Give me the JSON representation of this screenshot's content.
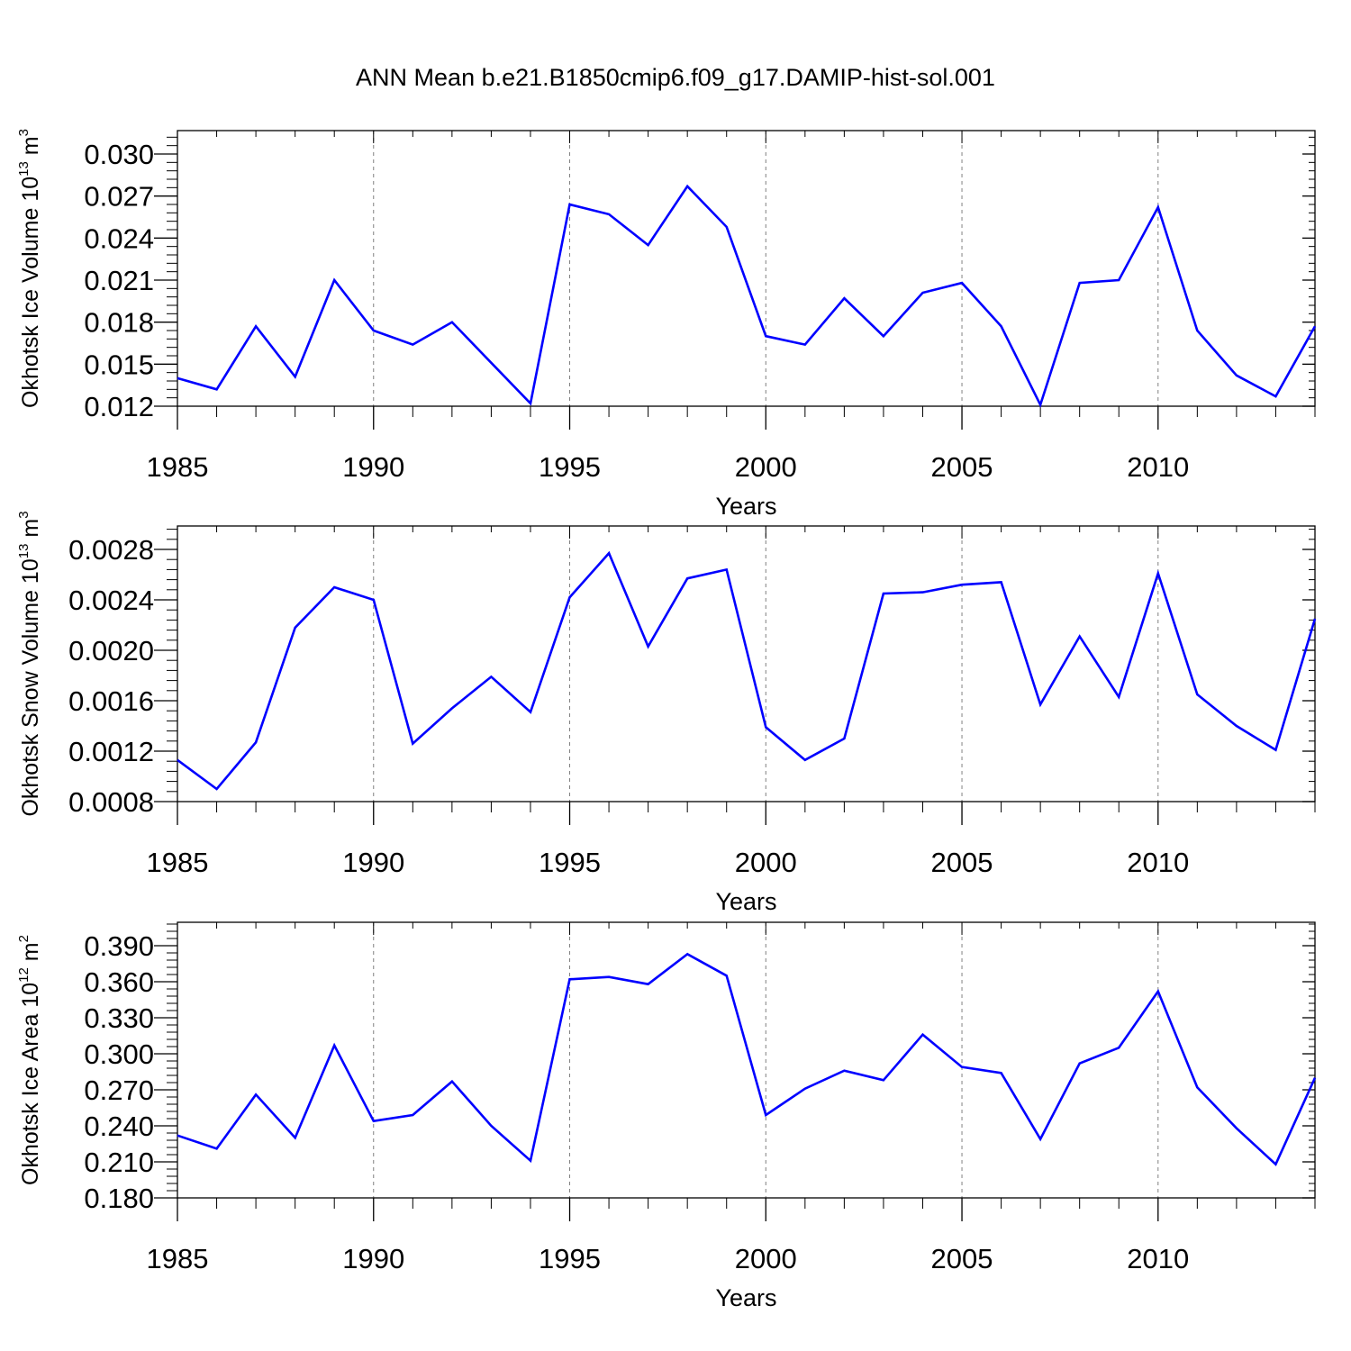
{
  "title": "ANN Mean b.e21.B1850cmip6.f09_g17.DAMIP-hist-sol.001",
  "colors": {
    "line": "#0000ff",
    "axis": "#000000",
    "grid": "#808080"
  },
  "chart_data": [
    {
      "type": "line",
      "ylabel_main": "Okhotsk Ice Volume 10",
      "ylabel_exp": "13",
      "ylabel_unit": " m",
      "ylabel_unit_exp": "3",
      "xlabel": "Years",
      "xlim": [
        1985,
        2014
      ],
      "ylim": [
        0.012,
        0.03
      ],
      "x_ticks": [
        1985,
        1990,
        1995,
        2000,
        2005,
        2010
      ],
      "y_ticks": [
        "0.012",
        "0.015",
        "0.018",
        "0.021",
        "0.024",
        "0.027",
        "0.030"
      ],
      "grid": "vertical dashed at major x ticks",
      "x": [
        1985,
        1986,
        1987,
        1988,
        1989,
        1990,
        1991,
        1992,
        1993,
        1994,
        1995,
        1996,
        1997,
        1998,
        1999,
        2000,
        2001,
        2002,
        2003,
        2004,
        2005,
        2006,
        2007,
        2008,
        2009,
        2010,
        2011,
        2012,
        2013,
        2014
      ],
      "series": [
        {
          "values": [
            0.014,
            0.0132,
            0.0177,
            0.0141,
            0.021,
            0.0174,
            0.0164,
            0.018,
            0.0151,
            0.0122,
            0.0264,
            0.0257,
            0.0235,
            0.0277,
            0.0248,
            0.017,
            0.0164,
            0.0197,
            0.017,
            0.0201,
            0.0208,
            0.0177,
            0.0121,
            0.0208,
            0.021,
            0.0262,
            0.0174,
            0.0142,
            0.0127,
            0.0177
          ]
        }
      ]
    },
    {
      "type": "line",
      "ylabel_main": "Okhotsk Snow Volume 10",
      "ylabel_exp": "13",
      "ylabel_unit": " m",
      "ylabel_unit_exp": "3",
      "xlabel": "Years",
      "xlim": [
        1985,
        2014
      ],
      "ylim": [
        0.0008,
        0.0028
      ],
      "x_ticks": [
        1985,
        1990,
        1995,
        2000,
        2005,
        2010
      ],
      "y_ticks": [
        "0.0008",
        "0.0012",
        "0.0016",
        "0.0020",
        "0.0024",
        "0.0028"
      ],
      "grid": "vertical dashed at major x ticks",
      "x": [
        1985,
        1986,
        1987,
        1988,
        1989,
        1990,
        1991,
        1992,
        1993,
        1994,
        1995,
        1996,
        1997,
        1998,
        1999,
        2000,
        2001,
        2002,
        2003,
        2004,
        2005,
        2006,
        2007,
        2008,
        2009,
        2010,
        2011,
        2012,
        2013,
        2014
      ],
      "series": [
        {
          "values": [
            0.00113,
            0.0009,
            0.00127,
            0.00218,
            0.0025,
            0.0024,
            0.00126,
            0.00154,
            0.00179,
            0.00151,
            0.00242,
            0.00277,
            0.00203,
            0.00257,
            0.00264,
            0.00139,
            0.00113,
            0.0013,
            0.00245,
            0.00246,
            0.00252,
            0.00254,
            0.00157,
            0.00211,
            0.00163,
            0.00261,
            0.00165,
            0.0014,
            0.00121,
            0.00225
          ]
        }
      ]
    },
    {
      "type": "line",
      "ylabel_main": "Okhotsk Ice Area 10",
      "ylabel_exp": "12",
      "ylabel_unit": " m",
      "ylabel_unit_exp": "2",
      "xlabel": "Years",
      "xlim": [
        1985,
        2014
      ],
      "ylim": [
        0.18,
        0.39
      ],
      "x_ticks": [
        1985,
        1990,
        1995,
        2000,
        2005,
        2010
      ],
      "y_ticks": [
        "0.180",
        "0.210",
        "0.240",
        "0.270",
        "0.300",
        "0.330",
        "0.360",
        "0.390"
      ],
      "grid": "vertical dashed at major x ticks",
      "x": [
        1985,
        1986,
        1987,
        1988,
        1989,
        1990,
        1991,
        1992,
        1993,
        1994,
        1995,
        1996,
        1997,
        1998,
        1999,
        2000,
        2001,
        2002,
        2003,
        2004,
        2005,
        2006,
        2007,
        2008,
        2009,
        2010,
        2011,
        2012,
        2013,
        2014
      ],
      "series": [
        {
          "values": [
            0.232,
            0.221,
            0.266,
            0.23,
            0.307,
            0.244,
            0.249,
            0.277,
            0.24,
            0.211,
            0.362,
            0.364,
            0.358,
            0.383,
            0.365,
            0.249,
            0.271,
            0.286,
            0.278,
            0.316,
            0.289,
            0.284,
            0.229,
            0.292,
            0.305,
            0.352,
            0.272,
            0.238,
            0.208,
            0.28
          ]
        }
      ]
    }
  ]
}
